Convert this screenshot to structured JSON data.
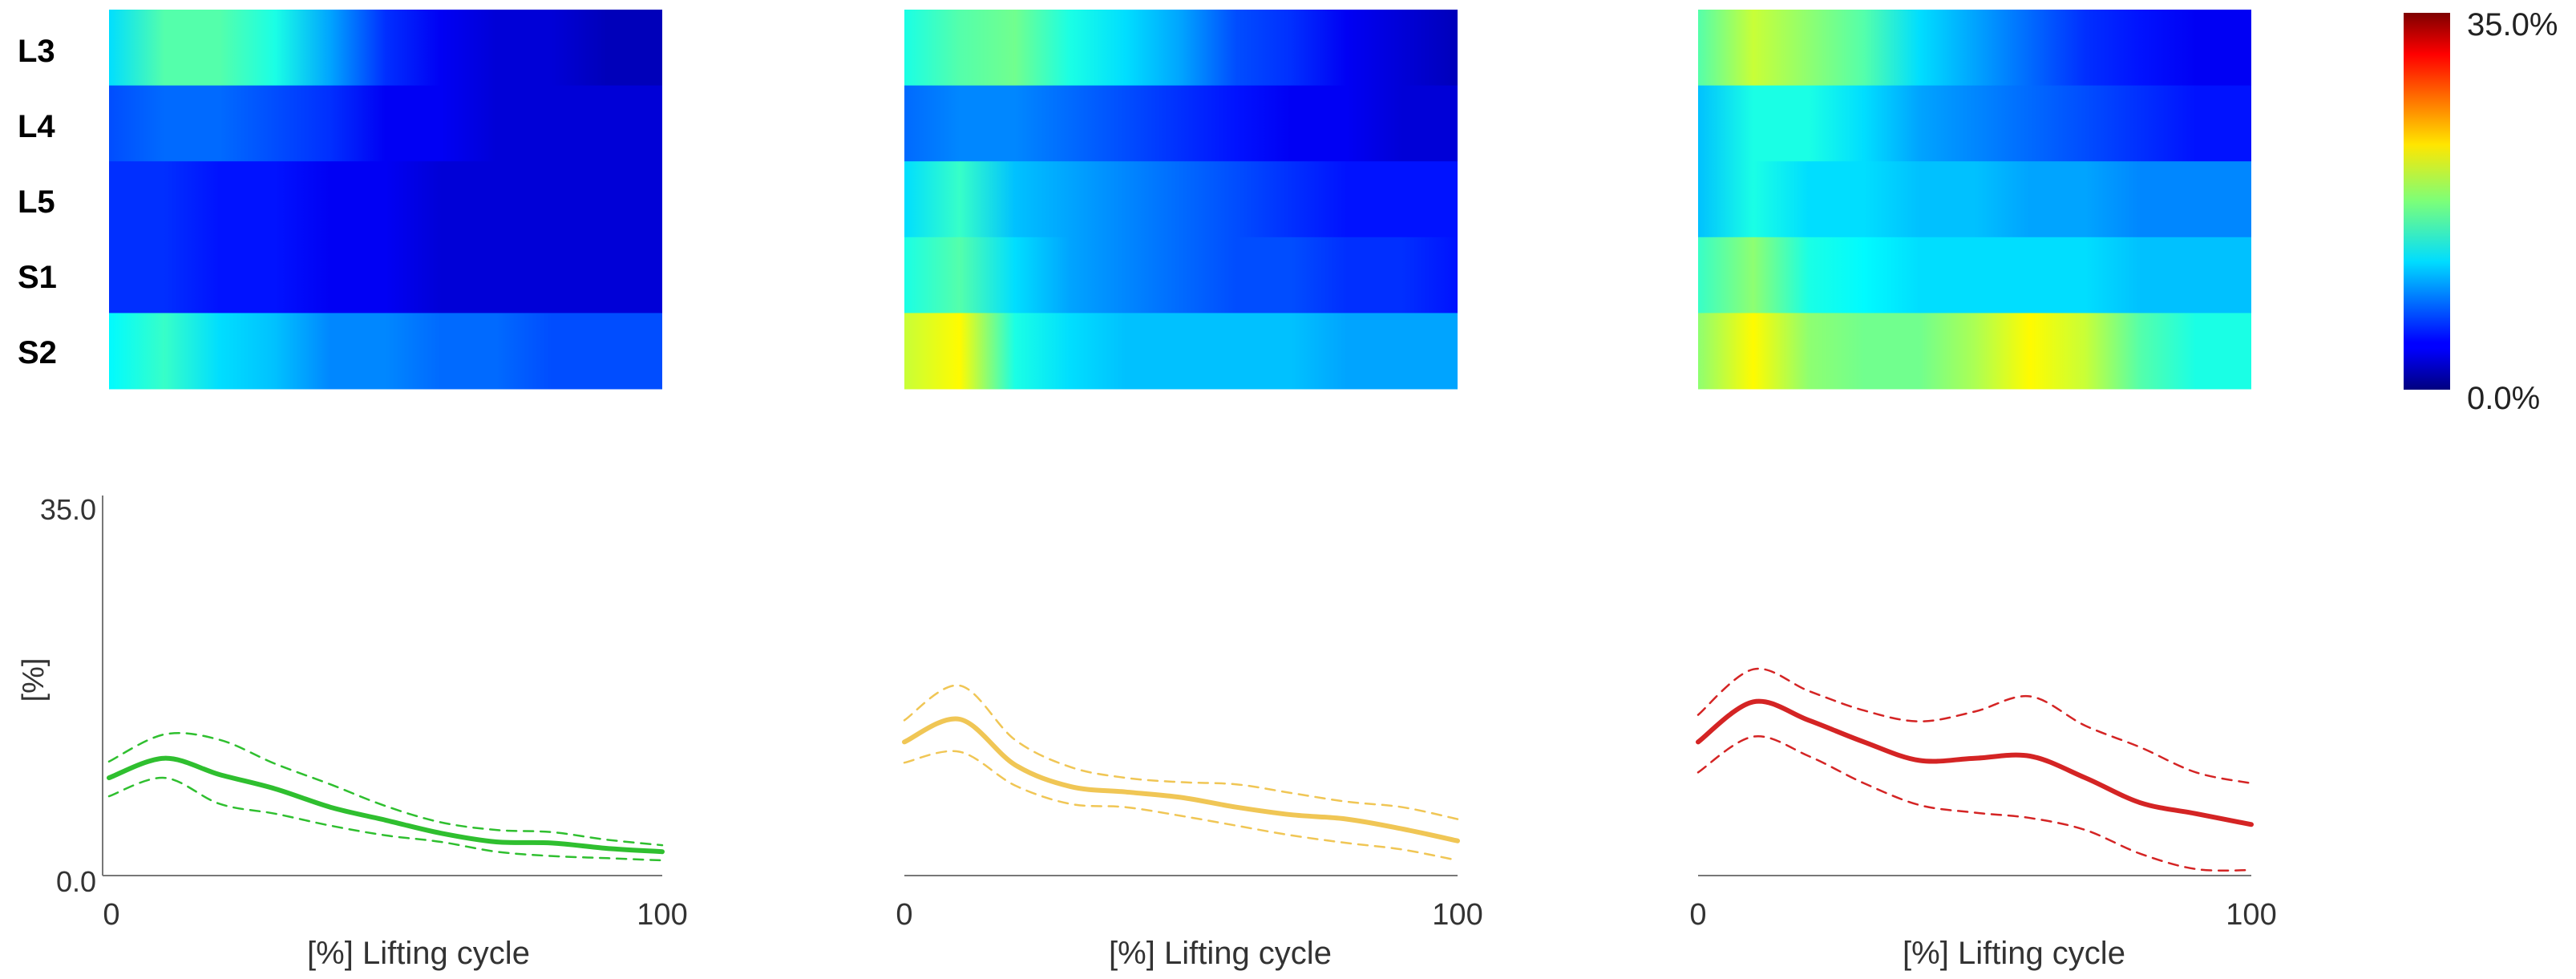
{
  "chart_data": {
    "type": "heatmap",
    "levels": [
      "L3",
      "L4",
      "L5",
      "S1",
      "S2"
    ],
    "colorbar": {
      "min_label": "0.0%",
      "max_label": "35.0%",
      "min": 0,
      "max": 35,
      "colormap": "jet"
    },
    "x": [
      0,
      10,
      20,
      30,
      40,
      50,
      60,
      70,
      80,
      90,
      100
    ],
    "panels": [
      {
        "id": "green",
        "line_color": "#2fbf2f",
        "heatmap": {
          "L3": [
            12,
            16,
            16,
            14,
            10,
            6,
            4,
            3,
            3,
            2,
            2
          ],
          "L4": [
            7,
            8,
            8,
            7,
            6,
            4,
            4,
            3,
            3,
            3,
            3
          ],
          "L5": [
            6,
            6,
            5,
            5,
            4,
            4,
            3,
            3,
            3,
            3,
            3
          ],
          "S1": [
            6,
            6,
            5,
            5,
            4,
            4,
            3,
            3,
            3,
            3,
            3
          ],
          "S2": [
            13,
            15,
            12,
            11,
            9,
            9,
            8,
            8,
            7,
            7,
            7
          ]
        },
        "mean": [
          9.0,
          10.8,
          9.3,
          8.0,
          6.3,
          5.1,
          3.9,
          3.1,
          3.0,
          2.5,
          2.2
        ],
        "upper": [
          10.5,
          13.0,
          12.5,
          10.3,
          8.4,
          6.4,
          4.9,
          4.2,
          4.0,
          3.3,
          2.8
        ],
        "lower": [
          7.3,
          9.0,
          6.6,
          5.7,
          4.6,
          3.7,
          3.1,
          2.2,
          1.8,
          1.6,
          1.4
        ],
        "x_ticks": [
          "0",
          "100"
        ],
        "xlabel": "[%] Lifting cycle",
        "y_ticks": [
          "35.0",
          "0.0"
        ],
        "ylabel": "[%]",
        "ylim": [
          0,
          35
        ]
      },
      {
        "id": "yellow",
        "line_color": "#f0c655",
        "heatmap": {
          "L3": [
            14,
            16,
            17,
            14,
            12,
            10,
            7,
            6,
            4,
            3,
            2
          ],
          "L4": [
            8,
            9,
            9,
            8,
            7,
            6,
            5,
            4,
            4,
            3,
            3
          ],
          "L5": [
            12,
            15,
            11,
            10,
            9,
            8,
            7,
            6,
            5,
            5,
            5
          ],
          "S1": [
            14,
            16,
            12,
            10,
            9,
            8,
            7,
            7,
            6,
            6,
            5
          ],
          "S2": [
            20,
            22,
            14,
            12,
            11,
            11,
            11,
            11,
            10,
            10,
            10
          ]
        },
        "mean": [
          12.3,
          14.4,
          10.2,
          8.2,
          7.7,
          7.2,
          6.3,
          5.6,
          5.2,
          4.3,
          3.2
        ],
        "upper": [
          14.3,
          17.5,
          12.5,
          10.0,
          9.0,
          8.6,
          8.4,
          7.6,
          6.8,
          6.3,
          5.2
        ],
        "lower": [
          10.4,
          11.4,
          8.3,
          6.6,
          6.3,
          5.5,
          4.6,
          3.7,
          3.0,
          2.4,
          1.4
        ]
      },
      {
        "id": "red",
        "line_color": "#d42424",
        "heatmap": {
          "L3": [
            16,
            20,
            18,
            16,
            12,
            10,
            8,
            6,
            5,
            4,
            4
          ],
          "L4": [
            11,
            14,
            14,
            12,
            10,
            9,
            8,
            7,
            6,
            5,
            5
          ],
          "L5": [
            11,
            14,
            12,
            12,
            11,
            11,
            10,
            10,
            9,
            9,
            9
          ],
          "S1": [
            15,
            18,
            14,
            13,
            12,
            12,
            12,
            12,
            11,
            11,
            11
          ],
          "S2": [
            18,
            22,
            18,
            17,
            17,
            19,
            22,
            20,
            16,
            14,
            14
          ]
        },
        "mean": [
          12.3,
          16.0,
          14.3,
          12.3,
          10.6,
          10.8,
          11.0,
          9.0,
          6.7,
          5.7,
          4.7
        ],
        "upper": [
          14.8,
          19.0,
          17.0,
          15.2,
          14.2,
          15.1,
          16.5,
          13.8,
          11.8,
          9.5,
          8.5
        ],
        "lower": [
          9.5,
          12.8,
          11.0,
          8.5,
          6.5,
          5.8,
          5.3,
          4.2,
          2.0,
          0.6,
          0.5
        ]
      }
    ]
  }
}
